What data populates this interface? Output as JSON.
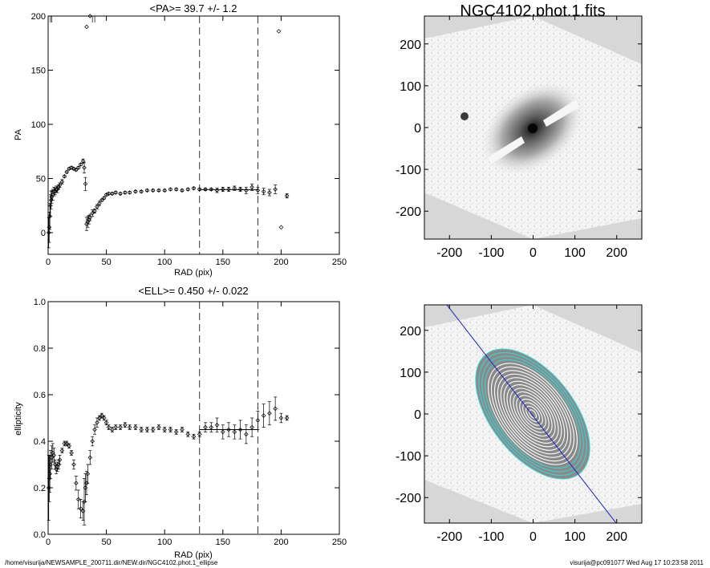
{
  "footer": {
    "path": "/home/visurija/NEWSAMPLE_200711.dir/NEW.dir/NGC4102.phot.1_ellipse",
    "stamp": "visurija@pc091077  Wed Aug 17 10:23:58 2011"
  },
  "image_panels": {
    "title": "NGC4102.phot.1.fits",
    "xticks": [
      -200,
      -100,
      0,
      100,
      200
    ],
    "yticks": [
      200,
      100,
      0,
      -100,
      -200
    ],
    "range": [
      -260,
      260
    ],
    "contour_color": "#3fd0d0",
    "major_axis_color": "#2020c0"
  },
  "chart_data": [
    {
      "type": "scatter",
      "title": "<PA>=  39.7 +/-   1.2",
      "xlabel": "RAD (pix)",
      "ylabel": "PA",
      "xlim": [
        0,
        250
      ],
      "ylim": [
        -20,
        200
      ],
      "xticks": [
        0,
        50,
        100,
        150,
        200,
        250
      ],
      "yticks": [
        0,
        50,
        100,
        150,
        200
      ],
      "vlines": [
        130,
        180
      ],
      "mean_line": {
        "x": [
          130,
          180
        ],
        "y": 39.7
      },
      "x": [
        0.5,
        1,
        1.5,
        2,
        2.5,
        3,
        4,
        5,
        6,
        7,
        8,
        9,
        10,
        12,
        14,
        16,
        18,
        20,
        22,
        24,
        26,
        28,
        30,
        31,
        32,
        33,
        34,
        35,
        36,
        38,
        40,
        42,
        44,
        46,
        48,
        50,
        52,
        55,
        58,
        62,
        66,
        70,
        75,
        80,
        85,
        90,
        95,
        100,
        105,
        110,
        115,
        120,
        125,
        130,
        135,
        140,
        145,
        150,
        155,
        160,
        165,
        170,
        175,
        180,
        185,
        190,
        195,
        200,
        205
      ],
      "y": [
        0,
        5,
        15,
        25,
        30,
        33,
        35,
        38,
        38,
        40,
        40,
        42,
        44,
        47,
        52,
        56,
        59,
        60,
        59,
        58,
        60,
        63,
        66,
        60,
        45,
        8,
        10,
        12,
        14,
        18,
        20,
        24,
        27,
        30,
        32,
        35,
        36,
        36,
        37,
        36,
        37,
        37,
        38,
        38,
        39,
        39,
        39,
        39,
        40,
        40,
        39,
        40,
        41,
        40,
        40,
        40,
        39,
        40,
        40,
        41,
        40,
        39,
        42,
        39,
        38,
        37,
        40,
        5,
        34
      ],
      "errors": [
        14,
        14,
        12,
        10,
        8,
        6,
        5,
        4,
        3,
        3,
        3,
        2,
        2,
        2,
        1,
        1,
        1,
        1,
        1,
        1,
        1,
        1,
        2,
        5,
        6,
        6,
        5,
        4,
        3,
        3,
        2,
        2,
        2,
        1,
        1,
        1,
        1,
        1,
        1,
        1,
        1,
        1,
        1,
        1,
        1,
        1,
        1,
        1,
        1,
        1,
        1,
        1,
        1,
        1,
        1,
        1,
        2,
        2,
        2,
        2,
        2,
        3,
        3,
        3,
        3,
        3,
        4,
        0,
        2
      ],
      "outliers_above": [
        {
          "x": 2,
          "y": 205
        },
        {
          "x": 3,
          "y": 210
        },
        {
          "x": 33,
          "y": 190
        },
        {
          "x": 36,
          "y": 200
        },
        {
          "x": 38,
          "y": 205
        },
        {
          "x": 40,
          "y": 210
        },
        {
          "x": 198,
          "y": 186
        }
      ]
    },
    {
      "type": "scatter",
      "title": "<ELL>= 0.450 +/-  0.022",
      "xlabel": "RAD (pix)",
      "ylabel": "ellipticity",
      "xlim": [
        0,
        250
      ],
      "ylim": [
        0,
        1
      ],
      "xticks": [
        0,
        50,
        100,
        150,
        200,
        250
      ],
      "yticks": [
        0.0,
        0.2,
        0.4,
        0.6,
        0.8,
        1.0
      ],
      "yticklabels": [
        "0.0",
        "0.2",
        "0.4",
        "0.6",
        "0.8",
        "1.0"
      ],
      "vlines": [
        130,
        180
      ],
      "mean_line": {
        "x": [
          130,
          180
        ],
        "y": 0.45
      },
      "x": [
        0.5,
        1,
        1.5,
        2,
        3,
        4,
        5,
        6,
        7,
        8,
        9,
        10,
        12,
        14,
        16,
        18,
        20,
        22,
        24,
        26,
        28,
        30,
        31,
        32,
        33,
        34,
        36,
        38,
        40,
        42,
        44,
        46,
        48,
        50,
        52,
        55,
        58,
        62,
        66,
        70,
        75,
        80,
        85,
        90,
        95,
        100,
        105,
        110,
        115,
        120,
        125,
        130,
        135,
        140,
        145,
        150,
        155,
        160,
        165,
        170,
        175,
        180,
        185,
        190,
        195,
        200,
        205
      ],
      "y": [
        0.2,
        0.24,
        0.26,
        0.3,
        0.33,
        0.35,
        0.34,
        0.3,
        0.28,
        0.29,
        0.3,
        0.32,
        0.36,
        0.39,
        0.39,
        0.38,
        0.35,
        0.3,
        0.22,
        0.15,
        0.11,
        0.1,
        0.14,
        0.2,
        0.22,
        0.26,
        0.33,
        0.4,
        0.45,
        0.48,
        0.5,
        0.51,
        0.5,
        0.48,
        0.46,
        0.45,
        0.46,
        0.46,
        0.47,
        0.46,
        0.46,
        0.45,
        0.45,
        0.45,
        0.46,
        0.45,
        0.45,
        0.44,
        0.45,
        0.43,
        0.42,
        0.43,
        0.46,
        0.46,
        0.47,
        0.44,
        0.45,
        0.44,
        0.45,
        0.43,
        0.46,
        0.49,
        0.51,
        0.52,
        0.54,
        0.5,
        0.5
      ],
      "errors": [
        0.14,
        0.1,
        0.08,
        0.06,
        0.05,
        0.04,
        0.03,
        0.02,
        0.02,
        0.02,
        0.02,
        0.02,
        0.01,
        0.01,
        0.01,
        0.01,
        0.01,
        0.02,
        0.03,
        0.04,
        0.04,
        0.04,
        0.1,
        0.06,
        0.05,
        0.04,
        0.03,
        0.02,
        0.02,
        0.02,
        0.01,
        0.01,
        0.01,
        0.01,
        0.01,
        0.01,
        0.01,
        0.01,
        0.01,
        0.01,
        0.01,
        0.01,
        0.01,
        0.01,
        0.01,
        0.01,
        0.01,
        0.01,
        0.01,
        0.01,
        0.01,
        0.01,
        0.02,
        0.02,
        0.03,
        0.03,
        0.03,
        0.03,
        0.04,
        0.04,
        0.04,
        0.04,
        0.05,
        0.05,
        0.05,
        0.02,
        0.01
      ]
    }
  ]
}
